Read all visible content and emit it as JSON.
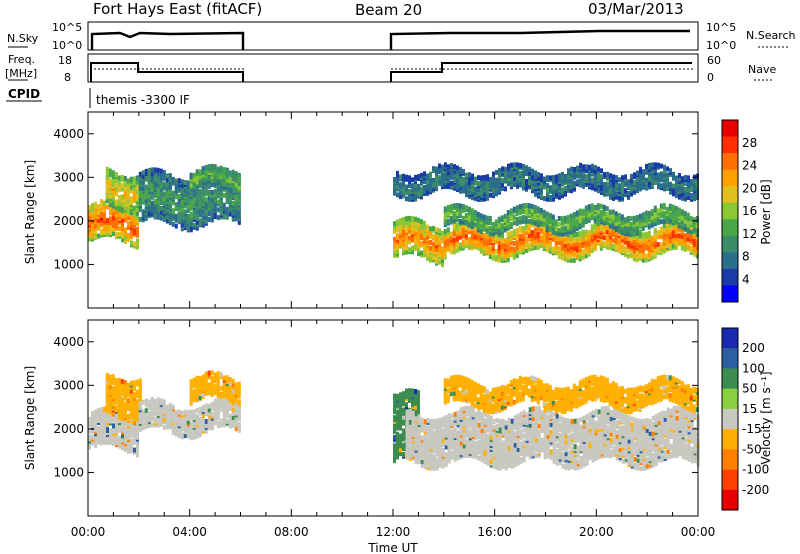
{
  "header": {
    "title": "Fort Hays East (fitACF)",
    "beam": "Beam 20",
    "date": "03/Mar/2013"
  },
  "top_panels": {
    "nsky_label": "N.Sky",
    "nsky_ticks": [
      "10^5",
      "10^0"
    ],
    "nsearch_label": "N.Search",
    "nsearch_ticks": [
      "10^5",
      "10^0"
    ],
    "freq_label": "Freq.",
    "freq_unit": "[MHz]",
    "freq_ticks": [
      "18",
      "8"
    ],
    "nave_label": "Nave",
    "nave_ticks": [
      "60",
      "0"
    ],
    "cpid_label": "CPID",
    "cpid_text": "themis -3300 IF"
  },
  "colors": {
    "power_scale": [
      "#0000ff",
      "#1a3aa8",
      "#2b6e8c",
      "#3c8c6a",
      "#48a848",
      "#8cc834",
      "#e0c020",
      "#ffa000",
      "#ff7000",
      "#ff3000",
      "#e80000"
    ],
    "velocity_scale": [
      "#e80000",
      "#ff4000",
      "#ff8000",
      "#ffb000",
      "#c8c8c0",
      "#88d040",
      "#3c8c50",
      "#2b5fa0",
      "#1a2ab0"
    ],
    "ground_scatter": "#c8c8c0"
  },
  "chart_data": [
    {
      "type": "heatmap",
      "panel": "power",
      "ylabel": "Slant Range [km]",
      "ylim": [
        0,
        4500
      ],
      "yticks": [
        "1000",
        "2000",
        "3000",
        "4000"
      ],
      "xlim_hours": [
        0,
        24
      ],
      "colorbar": {
        "label": "Power [dB]",
        "ticks": [
          "4",
          "8",
          "12",
          "16",
          "20",
          "24",
          "28"
        ]
      },
      "data_gaps_hours": [
        [
          6,
          12
        ]
      ],
      "bands": [
        {
          "start_h": 0.0,
          "end_h": 2.0,
          "range_km": [
            1600,
            2400
          ],
          "power_db": 26
        },
        {
          "start_h": 0.7,
          "end_h": 2.0,
          "range_km": [
            2400,
            3200
          ],
          "power_db": 20
        },
        {
          "start_h": 2.0,
          "end_h": 6.0,
          "range_km": [
            2000,
            3100
          ],
          "power_db": 10
        },
        {
          "start_h": 4.0,
          "end_h": 6.0,
          "range_km": [
            2800,
            3200
          ],
          "power_db": 14
        },
        {
          "start_h": 12.0,
          "end_h": 14.0,
          "range_km": [
            1200,
            2000
          ],
          "power_db": 24
        },
        {
          "start_h": 14.0,
          "end_h": 24.0,
          "range_km": [
            1300,
            1900
          ],
          "power_db": 26
        },
        {
          "start_h": 14.0,
          "end_h": 24.0,
          "range_km": [
            1900,
            2300
          ],
          "power_db": 14
        },
        {
          "start_h": 12.0,
          "end_h": 24.0,
          "range_km": [
            2700,
            3200
          ],
          "power_db": 8
        }
      ]
    },
    {
      "type": "heatmap",
      "panel": "velocity",
      "ylabel": "Slant Range [km]",
      "ylim": [
        0,
        4500
      ],
      "yticks": [
        "1000",
        "2000",
        "3000",
        "4000"
      ],
      "xlim_hours": [
        0,
        24
      ],
      "xticks": [
        "00:00",
        "04:00",
        "08:00",
        "12:00",
        "16:00",
        "20:00",
        "00:00"
      ],
      "xlabel": "Time UT",
      "colorbar": {
        "label": "Velocity [m s⁻¹]",
        "ticks": [
          "200",
          "100",
          "50",
          "15",
          "-15",
          "-50",
          "-100",
          "-200"
        ]
      },
      "data_gaps_hours": [
        [
          6,
          12
        ]
      ],
      "bands": [
        {
          "start_h": 0.0,
          "end_h": 2.0,
          "range_km": [
            1600,
            2400
          ],
          "velocity": 0
        },
        {
          "start_h": 0.7,
          "end_h": 2.0,
          "range_km": [
            2400,
            3300
          ],
          "velocity": -40
        },
        {
          "start_h": 2.0,
          "end_h": 6.0,
          "range_km": [
            2000,
            2600
          ],
          "velocity": 0
        },
        {
          "start_h": 4.0,
          "end_h": 6.0,
          "range_km": [
            2700,
            3200
          ],
          "velocity": -40
        },
        {
          "start_h": 12.0,
          "end_h": 13.0,
          "range_km": [
            1300,
            2800
          ],
          "velocity": 30
        },
        {
          "start_h": 12.5,
          "end_h": 24.0,
          "range_km": [
            1300,
            2400
          ],
          "velocity": 0
        },
        {
          "start_h": 14.0,
          "end_h": 24.0,
          "range_km": [
            2600,
            3100
          ],
          "velocity": -30
        }
      ]
    }
  ]
}
